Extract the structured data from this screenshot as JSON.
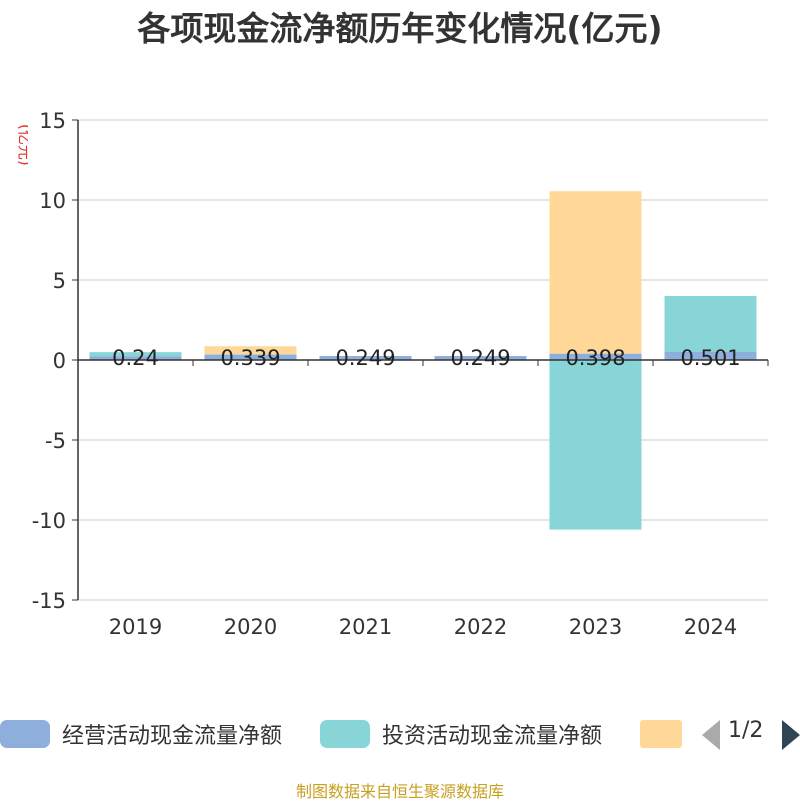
{
  "chart_data": {
    "type": "bar",
    "stacked": true,
    "title": "各项现金流净额历年变化情况(亿元)",
    "ylabel": "(亿元)",
    "ylim": [
      -15,
      15
    ],
    "yticks": [
      15,
      10,
      5,
      0,
      -5,
      -10,
      -15
    ],
    "categories": [
      "2019",
      "2020",
      "2021",
      "2022",
      "2023",
      "2024"
    ],
    "series": [
      {
        "name": "经营活动现金流量净额",
        "color": "#8eaedb",
        "values": [
          0.24,
          0.339,
          0.249,
          0.249,
          0.398,
          0.501
        ],
        "labels": [
          "0.24",
          "0.339",
          "0.249",
          "0.249",
          "0.398",
          "0.501"
        ]
      },
      {
        "name": "投资活动现金流量净额",
        "color": "#88d5d8",
        "values": [
          0.25,
          0.02,
          0.0,
          0.0,
          -10.6,
          3.5
        ]
      },
      {
        "name": "",
        "color": "#ffd898",
        "values": [
          0.0,
          0.5,
          0.0,
          0.0,
          10.15,
          0.0
        ]
      }
    ],
    "grid": true,
    "legend_position": "bottom"
  },
  "legend": {
    "pager_text": "1/2",
    "prev_icon": "chevron-left-icon",
    "next_icon": "chevron-right-icon"
  },
  "footer": {
    "source": "制图数据来自恒生聚源数据库"
  }
}
